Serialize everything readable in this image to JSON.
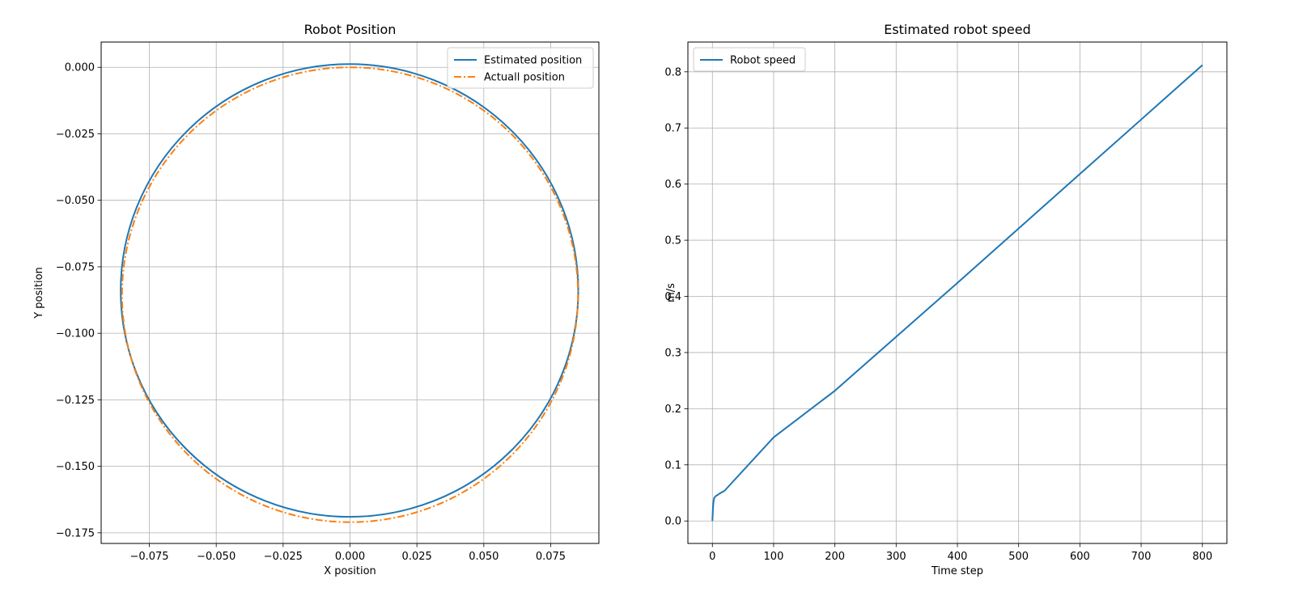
{
  "chart_data": [
    {
      "type": "line",
      "title": "Robot Position",
      "xlabel": "X position",
      "ylabel": "Y position",
      "xlim": [
        -0.093,
        0.093
      ],
      "ylim": [
        -0.179,
        0.0095
      ],
      "grid": true,
      "legend_position": "top-right",
      "x_ticks": [
        -0.075,
        -0.05,
        -0.025,
        0.0,
        0.025,
        0.05,
        0.075
      ],
      "x_tick_labels": [
        "−0.075",
        "−0.050",
        "−0.025",
        "0.000",
        "0.025",
        "0.050",
        "0.075"
      ],
      "y_ticks": [
        0.0,
        -0.025,
        -0.05,
        -0.075,
        -0.1,
        -0.125,
        -0.15,
        -0.175
      ],
      "y_tick_labels": [
        "0.000",
        "−0.025",
        "−0.050",
        "−0.075",
        "−0.100",
        "−0.125",
        "−0.150",
        "−0.175"
      ],
      "series": [
        {
          "name": "Estimated position",
          "color": "#1f77b4",
          "style": "solid",
          "shape": "circle",
          "center": [
            -0.0002,
            -0.0839
          ],
          "radius_x": 0.0855,
          "radius_y": 0.0851
        },
        {
          "name": "Actuall position",
          "color": "#ff7f0e",
          "style": "dashdot",
          "shape": "circle",
          "center": [
            0.0,
            -0.0855
          ],
          "radius_x": 0.0852,
          "radius_y": 0.0855
        }
      ]
    },
    {
      "type": "line",
      "title": "Estimated robot speed",
      "xlabel": "Time step",
      "ylabel": "m/s",
      "xlim": [
        -40,
        840
      ],
      "ylim": [
        -0.04,
        0.853
      ],
      "grid": true,
      "legend_position": "top-left",
      "x_ticks": [
        0,
        100,
        200,
        300,
        400,
        500,
        600,
        700,
        800
      ],
      "x_tick_labels": [
        "0",
        "100",
        "200",
        "300",
        "400",
        "500",
        "600",
        "700",
        "800"
      ],
      "y_ticks": [
        0.0,
        0.1,
        0.2,
        0.3,
        0.4,
        0.5,
        0.6,
        0.7,
        0.8
      ],
      "y_tick_labels": [
        "0.0",
        "0.1",
        "0.2",
        "0.3",
        "0.4",
        "0.5",
        "0.6",
        "0.7",
        "0.8"
      ],
      "series": [
        {
          "name": "Robot speed",
          "color": "#1f77b4",
          "style": "solid",
          "x": [
            0,
            1,
            2,
            3,
            5,
            8,
            12,
            20,
            100,
            200,
            300,
            400,
            500,
            600,
            700,
            800
          ],
          "y": [
            0.0,
            0.025,
            0.036,
            0.041,
            0.044,
            0.046,
            0.049,
            0.054,
            0.149,
            0.232,
            0.328,
            0.424,
            0.521,
            0.618,
            0.715,
            0.812
          ]
        }
      ]
    }
  ]
}
